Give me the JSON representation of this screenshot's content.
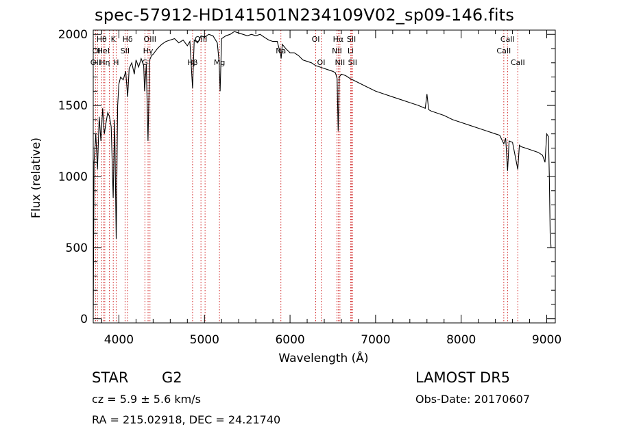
{
  "chart_data": {
    "type": "line",
    "title": "spec-57912-HD141501N234109V02_sp09-146.fits",
    "xlabel": "Wavelength (Å)",
    "ylabel": "Flux (relative)",
    "xlim": [
      3700,
      9100
    ],
    "ylim": [
      -30,
      2030
    ],
    "x_ticks": [
      4000,
      5000,
      6000,
      7000,
      8000,
      9000
    ],
    "y_ticks": [
      0,
      500,
      1000,
      1500,
      2000
    ],
    "grid": false,
    "series": [
      {
        "x": [
          3700,
          3710,
          3730,
          3750,
          3770,
          3790,
          3810,
          3830,
          3850,
          3870,
          3890,
          3910,
          3933,
          3950,
          3968,
          3985,
          4000,
          4020,
          4050,
          4080,
          4102,
          4120,
          4150,
          4180,
          4200,
          4230,
          4260,
          4290,
          4300,
          4320,
          4340,
          4360,
          4380,
          4400,
          4450,
          4500,
          4550,
          4600,
          4650,
          4700,
          4750,
          4800,
          4830,
          4861,
          4880,
          4920,
          4960,
          5000,
          5050,
          5100,
          5150,
          5172,
          5183,
          5200,
          5250,
          5300,
          5350,
          5400,
          5450,
          5500,
          5550,
          5600,
          5650,
          5700,
          5750,
          5800,
          5850,
          5890,
          5896,
          5910,
          5950,
          6000,
          6050,
          6100,
          6150,
          6200,
          6250,
          6300,
          6350,
          6400,
          6450,
          6500,
          6530,
          6550,
          6563,
          6575,
          6600,
          6650,
          6700,
          6800,
          6900,
          7000,
          7100,
          7200,
          7300,
          7400,
          7500,
          7580,
          7600,
          7620,
          7650,
          7700,
          7800,
          7900,
          8000,
          8100,
          8200,
          8300,
          8400,
          8450,
          8498,
          8520,
          8542,
          8560,
          8600,
          8662,
          8680,
          8700,
          8750,
          8800,
          8850,
          8900,
          8950,
          8980,
          9000,
          9020,
          9030,
          9040,
          9050
        ],
        "y": [
          0,
          1100,
          1300,
          1050,
          1420,
          1250,
          1480,
          1300,
          1380,
          1450,
          1420,
          1350,
          850,
          1400,
          560,
          1500,
          1650,
          1700,
          1680,
          1740,
          1560,
          1760,
          1800,
          1720,
          1820,
          1770,
          1830,
          1780,
          1600,
          1790,
          1250,
          1820,
          1850,
          1860,
          1900,
          1930,
          1950,
          1960,
          1970,
          1940,
          1960,
          1920,
          1950,
          1620,
          1960,
          1940,
          1990,
          1980,
          2000,
          1990,
          1940,
          1800,
          1600,
          1970,
          1990,
          2000,
          2020,
          2010,
          2000,
          1990,
          2000,
          1990,
          2000,
          1980,
          1960,
          1950,
          1950,
          1860,
          1830,
          1930,
          1900,
          1870,
          1870,
          1850,
          1820,
          1810,
          1800,
          1780,
          1770,
          1760,
          1750,
          1740,
          1730,
          1690,
          1320,
          1700,
          1720,
          1710,
          1690,
          1660,
          1630,
          1600,
          1580,
          1560,
          1540,
          1520,
          1500,
          1480,
          1580,
          1470,
          1460,
          1450,
          1430,
          1400,
          1380,
          1360,
          1340,
          1320,
          1300,
          1290,
          1230,
          1270,
          1040,
          1250,
          1240,
          1050,
          1220,
          1210,
          1200,
          1190,
          1180,
          1170,
          1150,
          1100,
          1300,
          1280,
          1000,
          600,
          500
        ]
      }
    ],
    "lines": [
      {
        "wavelength": 3727,
        "top": "OII",
        "label_row": 2
      },
      {
        "wavelength": 3750,
        "top": "OII",
        "label_row": 1
      },
      {
        "wavelength": 3798,
        "top": "Hθ",
        "label_row": 0
      },
      {
        "wavelength": 3819,
        "top": "HeI",
        "label_row": 1
      },
      {
        "wavelength": 3835,
        "top": "Hη",
        "label_row": 2
      },
      {
        "wavelength": 3889,
        "top": "",
        "label_row": -1
      },
      {
        "wavelength": 3934,
        "top": "K",
        "label_row": 0
      },
      {
        "wavelength": 3968,
        "top": "H",
        "label_row": 2
      },
      {
        "wavelength": 4072,
        "top": "SII",
        "label_row": 1
      },
      {
        "wavelength": 4102,
        "top": "Hδ",
        "label_row": 0
      },
      {
        "wavelength": 4304,
        "top": "G",
        "label_row": 2
      },
      {
        "wavelength": 4341,
        "top": "Hγ",
        "label_row": 1
      },
      {
        "wavelength": 4363,
        "top": "OIII",
        "label_row": 0
      },
      {
        "wavelength": 4861,
        "top": "Hβ",
        "label_row": 2
      },
      {
        "wavelength": 4959,
        "top": "OIII",
        "label_row": 0
      },
      {
        "wavelength": 5007,
        "top": "",
        "label_row": -1
      },
      {
        "wavelength": 5175,
        "top": "Mg",
        "label_row": 2
      },
      {
        "wavelength": 5893,
        "top": "Na",
        "label_row": 1
      },
      {
        "wavelength": 6300,
        "top": "OI",
        "label_row": 0
      },
      {
        "wavelength": 6364,
        "top": "OI",
        "label_row": 2
      },
      {
        "wavelength": 6548,
        "top": "NII",
        "label_row": 1
      },
      {
        "wavelength": 6563,
        "top": "Hα",
        "label_row": 0
      },
      {
        "wavelength": 6583,
        "top": "NII",
        "label_row": 2
      },
      {
        "wavelength": 6708,
        "top": "Li",
        "label_row": 1
      },
      {
        "wavelength": 6717,
        "top": "SII",
        "label_row": 0
      },
      {
        "wavelength": 6731,
        "top": "SII",
        "label_row": 2
      },
      {
        "wavelength": 8498,
        "top": "CaII",
        "label_row": 1
      },
      {
        "wavelength": 8542,
        "top": "CaII",
        "label_row": 0
      },
      {
        "wavelength": 8662,
        "top": "CaII",
        "label_row": 2
      }
    ]
  },
  "info": {
    "object_class": "STAR",
    "subclass": "G2",
    "survey": "LAMOST DR5",
    "redshift": "cz = 5.9 ± 5.6 km/s",
    "obs_date": "Obs-Date: 20170607",
    "coords": "RA = 215.02918, DEC =  24.21740"
  }
}
